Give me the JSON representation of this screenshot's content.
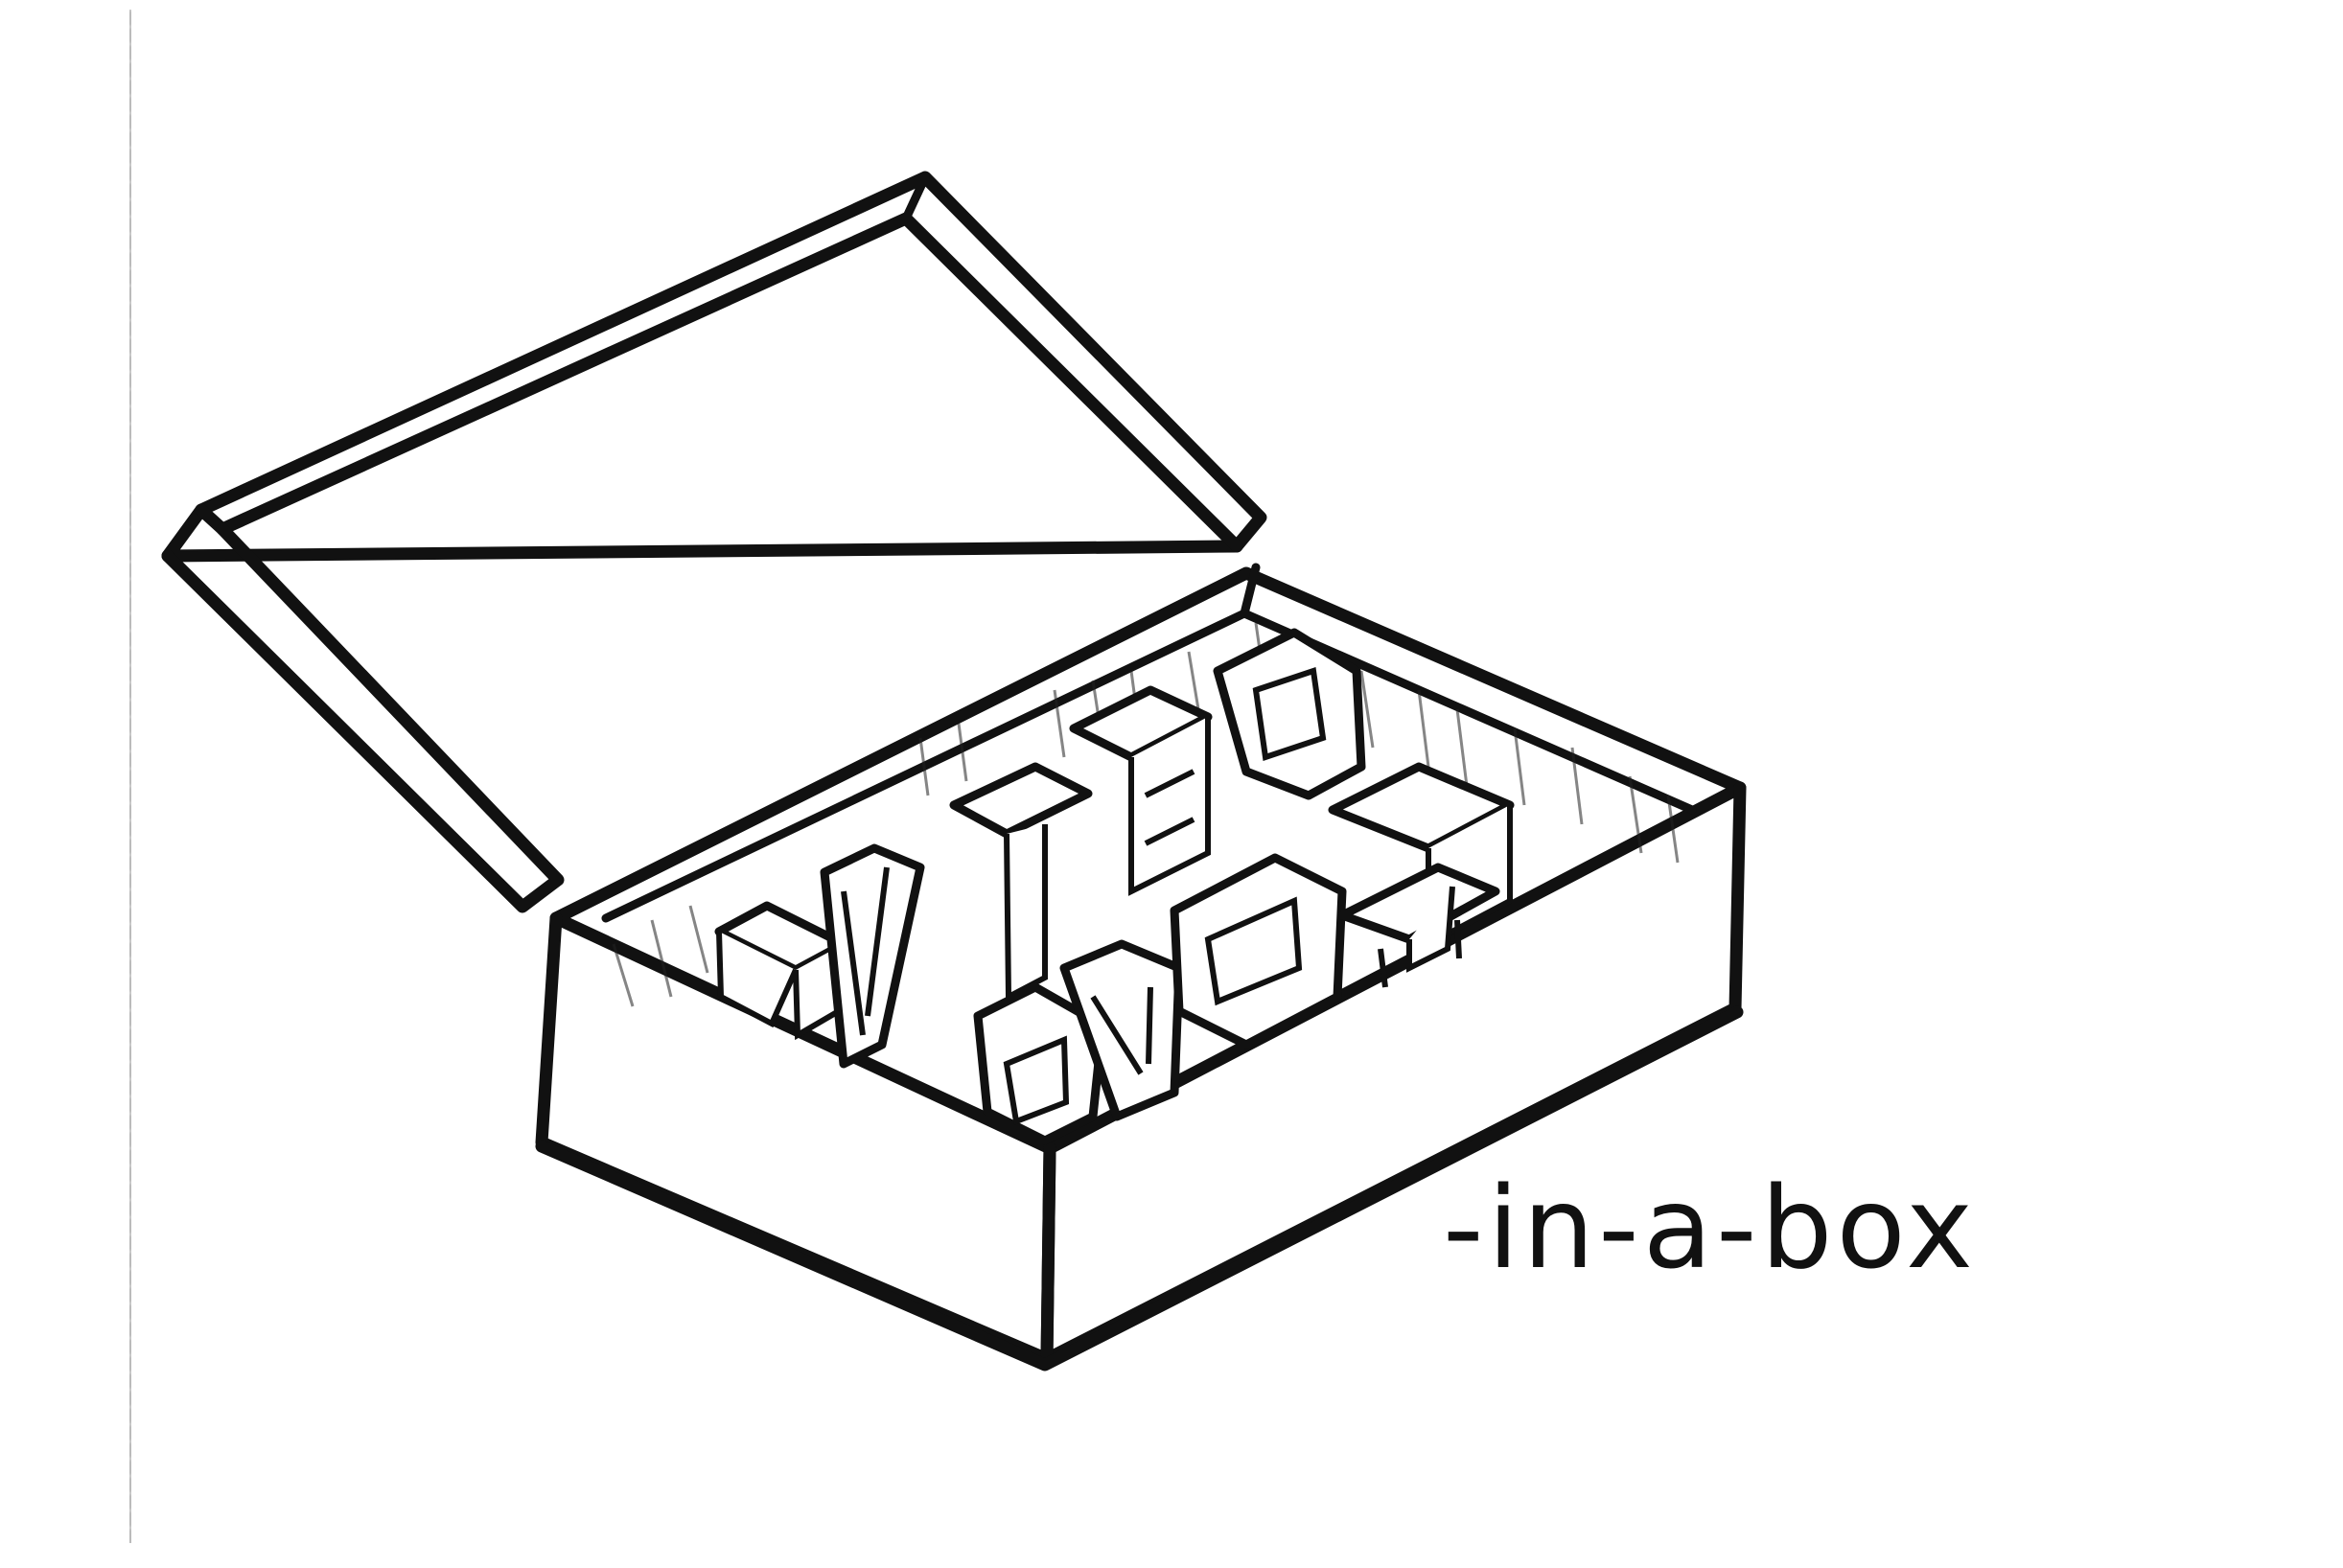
{
  "caption": {
    "text": "-in-a-box"
  },
  "illustration": {
    "subject": "open-cardboard-box-icon",
    "contents_icon": "3d-letter-blocks-icon",
    "ink_color": "#111111",
    "paper_color": "#ffffff"
  }
}
